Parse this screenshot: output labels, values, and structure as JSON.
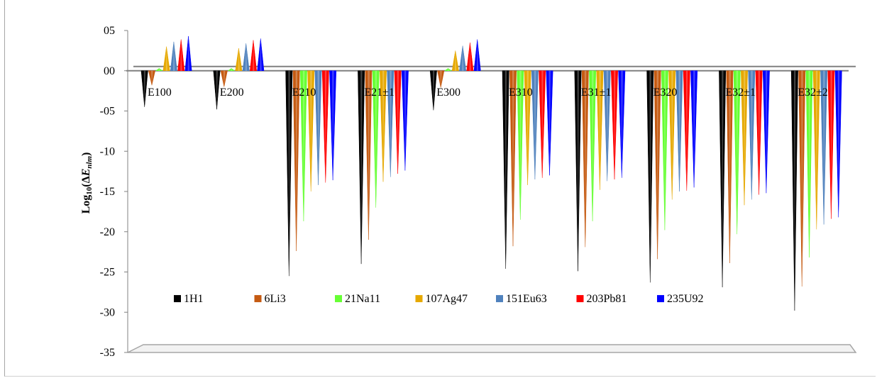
{
  "chart_data": {
    "type": "bar",
    "ylabel": "Log10(ΔEnlm)",
    "ylim": [
      -35,
      5
    ],
    "ytick_labels": [
      "05",
      "00",
      "-05",
      "-10",
      "-15",
      "-20",
      "-25",
      "-30",
      "-35"
    ],
    "grid": false,
    "legend_position": "inside-bottom",
    "categories": [
      "E100",
      "E200",
      "E210",
      "E21±1",
      "E300",
      "E310",
      "E31±1",
      "E320",
      "E32±1",
      "E32±2"
    ],
    "series": [
      {
        "name": "1H1",
        "color": "#000000",
        "values": [
          -4.5,
          -4.8,
          -25.5,
          -24.0,
          -4.9,
          -24.6,
          -24.9,
          -26.3,
          -26.9,
          -29.8
        ]
      },
      {
        "name": "6Li3",
        "color": "#c55a11",
        "values": [
          -1.8,
          -2.0,
          -22.4,
          -21.0,
          -2.1,
          -21.8,
          -21.9,
          -23.4,
          -23.9,
          -26.8
        ]
      },
      {
        "name": "21Na11",
        "color": "#66ff33",
        "values": [
          0.3,
          0.3,
          -18.7,
          -17.0,
          0.3,
          -18.5,
          -18.7,
          -19.8,
          -20.3,
          -23.2
        ]
      },
      {
        "name": "107Ag47",
        "color": "#e6a800",
        "values": [
          3.0,
          2.8,
          -15.0,
          -13.8,
          2.5,
          -14.2,
          -14.8,
          -16.0,
          -16.7,
          -19.7
        ]
      },
      {
        "name": "151Eu63",
        "color": "#4f81bd",
        "values": [
          3.6,
          3.4,
          -14.2,
          -13.2,
          3.1,
          -13.5,
          -13.7,
          -15.0,
          -16.0,
          -19.1
        ]
      },
      {
        "name": "203Pb81",
        "color": "#ff0000",
        "values": [
          3.9,
          3.8,
          -13.9,
          -12.8,
          3.5,
          -13.3,
          -13.5,
          -14.9,
          -15.4,
          -18.4
        ]
      },
      {
        "name": "235U92",
        "color": "#0000ff",
        "values": [
          4.3,
          4.0,
          -13.6,
          -12.4,
          3.9,
          -13.0,
          -13.3,
          -14.5,
          -15.2,
          -18.2
        ]
      }
    ]
  }
}
